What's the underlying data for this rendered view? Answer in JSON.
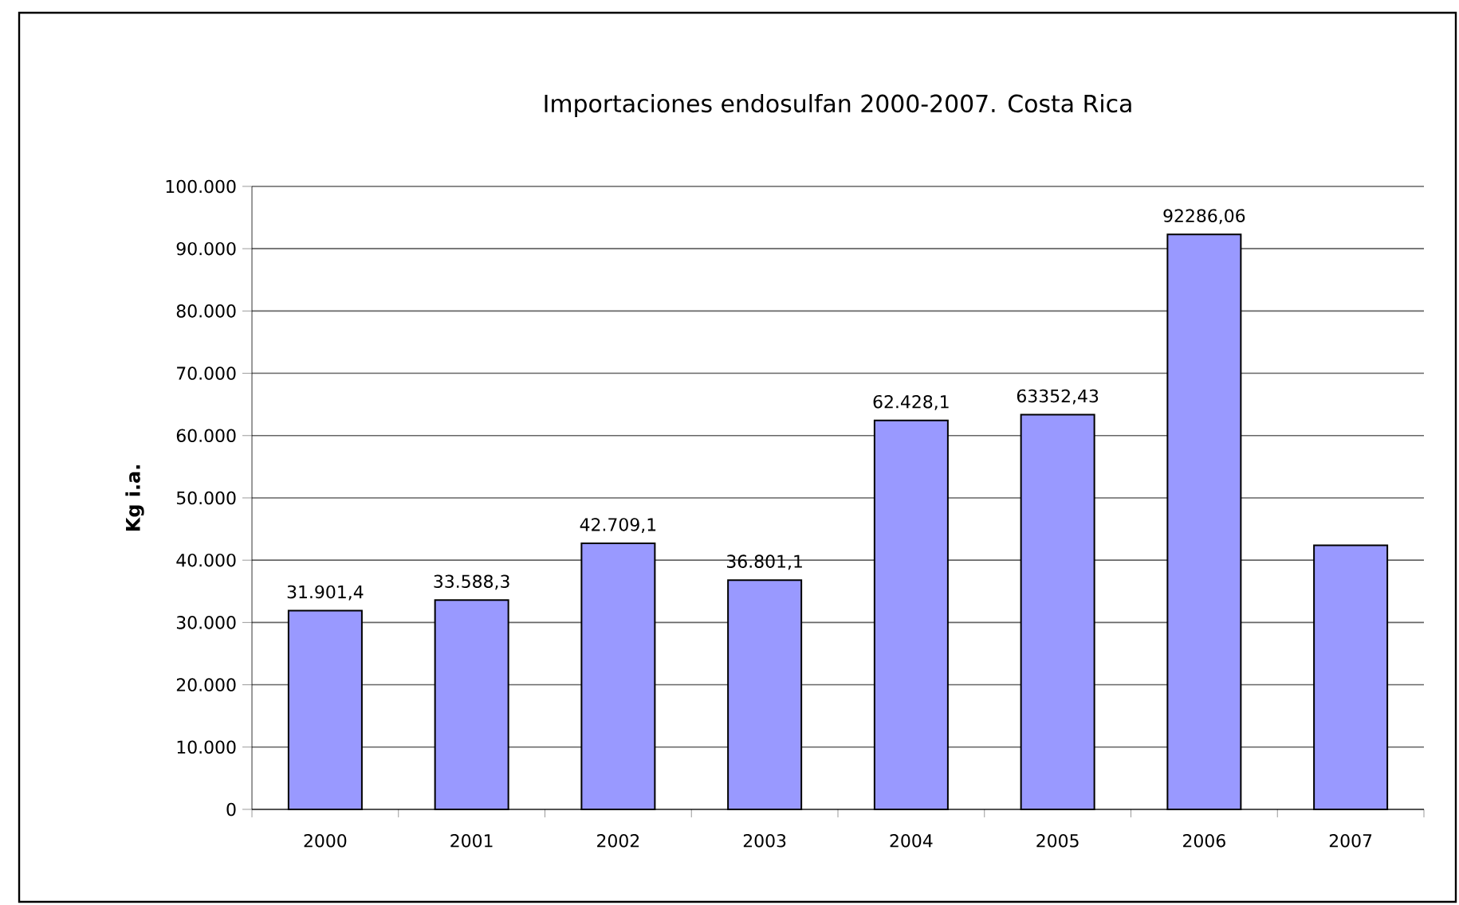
{
  "chart_data": {
    "type": "bar",
    "title": "Importaciones endosulfan 2000-2007. Costa Rica",
    "ylabel": "Kg i.a.",
    "categories": [
      "2000",
      "2001",
      "2002",
      "2003",
      "2004",
      "2005",
      "2006",
      "2007"
    ],
    "values": [
      31901.4,
      33588.3,
      42709.1,
      36801.1,
      62428.1,
      63352.43,
      92286.06,
      42400
    ],
    "value_labels": [
      "31.901,4",
      "33.588,3",
      "42.709,1",
      "36.801,1",
      "62.428,1",
      "63352,43",
      "92286,06",
      null
    ],
    "color": "#9999ff",
    "ylim": [
      0,
      100000
    ],
    "yticks": [
      {
        "value": 0,
        "label": "0"
      },
      {
        "value": 10000,
        "label": "10.000"
      },
      {
        "value": 20000,
        "label": "20.000"
      },
      {
        "value": 30000,
        "label": "30.000"
      },
      {
        "value": 40000,
        "label": "40.000"
      },
      {
        "value": 50000,
        "label": "50.000"
      },
      {
        "value": 60000,
        "label": "60.000"
      },
      {
        "value": 70000,
        "label": "70.000"
      },
      {
        "value": 80000,
        "label": "80.000"
      },
      {
        "value": 90000,
        "label": "90.000"
      },
      {
        "value": 100000,
        "label": "100.000"
      }
    ],
    "grid": "y"
  }
}
